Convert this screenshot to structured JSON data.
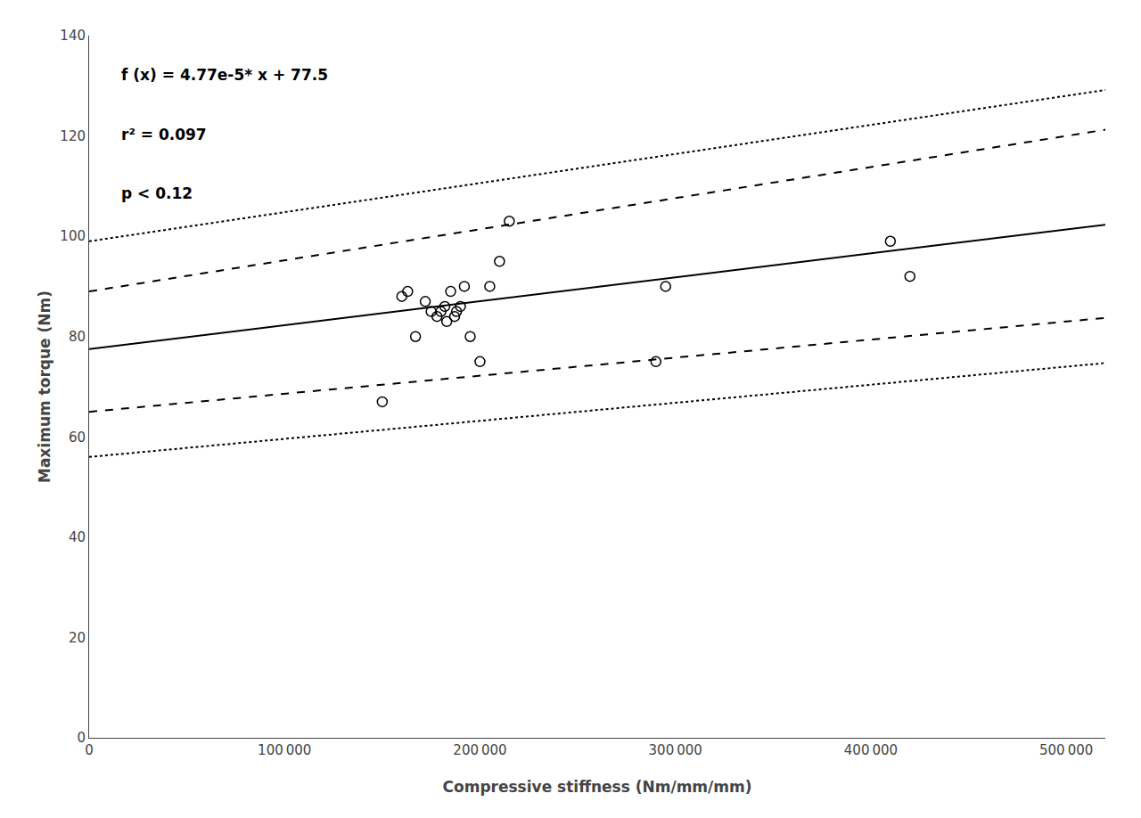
{
  "chart_data": {
    "type": "scatter",
    "xlabel": "Compressive stiffness (Nm/mm/mm)",
    "ylabel": "Maximum torque (Nm)",
    "annotations": [
      "f (x) = 4.77e-5* x + 77.5",
      "r² = 0.097",
      "p < 0.12"
    ],
    "xlim": [
      0,
      520000
    ],
    "ylim": [
      0,
      140
    ],
    "xticks": [
      0,
      {
        "value": 100000,
        "label": "100 000"
      },
      {
        "value": 200000,
        "label": "200 000"
      },
      {
        "value": 300000,
        "label": "300 000"
      },
      {
        "value": 400000,
        "label": "400 000"
      },
      {
        "value": 500000,
        "label": "500 000"
      }
    ],
    "yticks": [
      0,
      20,
      40,
      60,
      80,
      100,
      120,
      140
    ],
    "grid": false,
    "series": [
      {
        "type": "line",
        "line_style": "solid",
        "color": "#000000",
        "x": [
          0,
          500000,
          520000
        ],
        "values": [
          77.5,
          101.35,
          102.304
        ]
      },
      {
        "type": "line",
        "line_style": "dashed",
        "color": "#000000",
        "x": [
          0,
          500000,
          520000
        ],
        "values": [
          89.0,
          120.0,
          121.24
        ]
      },
      {
        "type": "line",
        "line_style": "dashed",
        "color": "#000000",
        "x": [
          0,
          500000,
          520000
        ],
        "values": [
          65.0,
          83.0,
          83.72
        ]
      },
      {
        "type": "line",
        "line_style": "dotted",
        "color": "#000000",
        "x": [
          0,
          500000,
          520000
        ],
        "values": [
          99.0,
          128.0,
          129.16
        ]
      },
      {
        "type": "line",
        "line_style": "dotted",
        "color": "#000000",
        "x": [
          0,
          500000,
          520000
        ],
        "values": [
          56.0,
          74.0,
          74.72
        ]
      },
      {
        "type": "scatter",
        "marker": "open circle",
        "color": "#000000",
        "x": [
          150000,
          160000,
          163000,
          167000,
          172000,
          175000,
          178000,
          180000,
          182000,
          183000,
          185000,
          187000,
          188000,
          190000,
          192000,
          195000,
          200000,
          205000,
          210000,
          215000,
          290000,
          295000,
          410000,
          420000
        ],
        "values": [
          67,
          88,
          89,
          80,
          87,
          85,
          84,
          85,
          86,
          83,
          89,
          84,
          85,
          86,
          90,
          80,
          75,
          90,
          95,
          103,
          75,
          90,
          99,
          92
        ]
      }
    ]
  }
}
